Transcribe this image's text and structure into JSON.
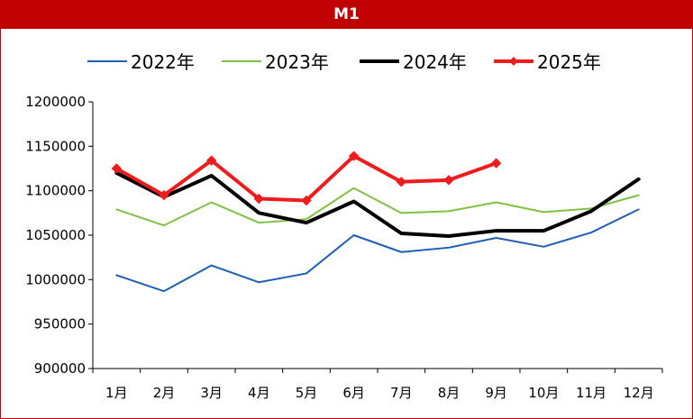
{
  "chart_data": {
    "type": "line",
    "title": "M1",
    "categories": [
      "1月",
      "2月",
      "3月",
      "4月",
      "5月",
      "6月",
      "7月",
      "8月",
      "9月",
      "10月",
      "11月",
      "12月"
    ],
    "ylim": [
      900000,
      1200000
    ],
    "yticks": [
      "900000",
      "950000",
      "1000000",
      "1050000",
      "1100000",
      "1150000",
      "1200000"
    ],
    "grid": false,
    "legend_position": "top",
    "series": [
      {
        "name": "2022年",
        "color": "#1f5fb4",
        "width": 2,
        "marker": false,
        "values": [
          1005000,
          987000,
          1016000,
          997000,
          1007000,
          1050000,
          1031000,
          1036000,
          1047000,
          1037000,
          1053000,
          1079000
        ]
      },
      {
        "name": "2023年",
        "color": "#7ec242",
        "width": 2,
        "marker": false,
        "values": [
          1079000,
          1061000,
          1087000,
          1064000,
          1068000,
          1103000,
          1075000,
          1077000,
          1087000,
          1076000,
          1080000,
          1095000
        ]
      },
      {
        "name": "2024年",
        "color": "#000000",
        "width": 4,
        "marker": false,
        "values": [
          1120000,
          1093000,
          1117000,
          1075000,
          1064000,
          1088000,
          1052000,
          1049000,
          1055000,
          1055000,
          1077000,
          1113000
        ]
      },
      {
        "name": "2025年",
        "color": "#ee1c1c",
        "width": 4,
        "marker": true,
        "values": [
          1125000,
          1095000,
          1134000,
          1091000,
          1089000,
          1139000,
          1110000,
          1112000,
          1131000,
          null,
          null,
          null
        ]
      }
    ]
  }
}
